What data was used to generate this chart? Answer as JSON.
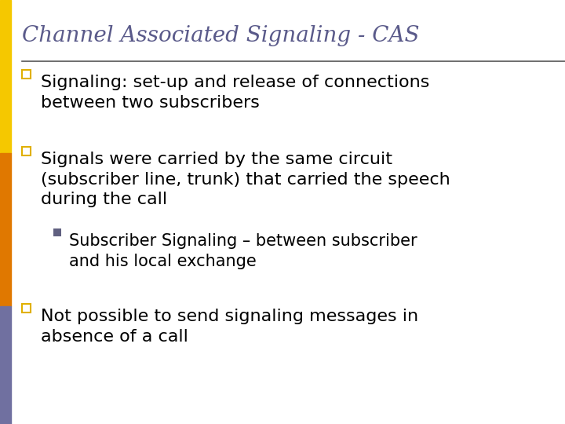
{
  "title": "Channel Associated Signaling - CAS",
  "title_color": "#5a5a8a",
  "title_fontsize": 20,
  "background_color": "#ffffff",
  "left_bar_yellow": "#f5c800",
  "left_bar_orange": "#e07800",
  "left_bar_purple": "#7070a0",
  "separator_color": "#555555",
  "text_color": "#000000",
  "text_fontsize": 16,
  "sub_text_fontsize": 15,
  "bullet_color_l1": "#e0b000",
  "bullet_color_l2": "#606080",
  "bullet_points": [
    {
      "level": 1,
      "text": "Signaling: set-up and release of connections\nbetween two subscribers"
    },
    {
      "level": 1,
      "text": "Signals were carried by the same circuit\n(subscriber line, trunk) that carried the speech\nduring the call"
    },
    {
      "level": 2,
      "text": "Subscriber Signaling – between subscriber\nand his local exchange"
    },
    {
      "level": 1,
      "text": "Not possible to send signaling messages in\nabsence of a call"
    }
  ],
  "fig_width": 7.2,
  "fig_height": 5.4,
  "dpi": 100
}
